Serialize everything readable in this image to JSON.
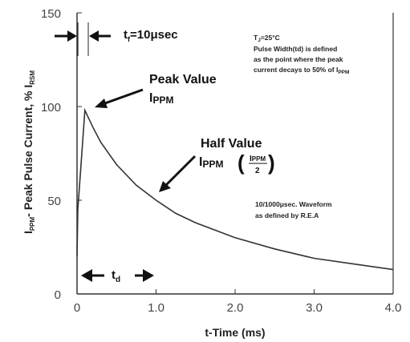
{
  "chart_data": {
    "type": "line",
    "xlabel": "t-Time (ms)",
    "ylabel": "Iₚₚₘ - Peak Pulse Current, % Iₓₛₘ",
    "ylabel_main": "Peak Pulse Current, % I",
    "ylabel_pre": "I",
    "ylabel_pre_sub": "PPM",
    "ylabel_dash": "-",
    "ylabel_post_sub": "RSM",
    "xlim": [
      0,
      4.0
    ],
    "ylim": [
      0,
      150
    ],
    "x_ticks": [
      0,
      1.0,
      2.0,
      3.0,
      4.0
    ],
    "x_tick_labels": [
      "0",
      "1.0",
      "2.0",
      "3.0",
      "4.0"
    ],
    "y_ticks": [
      0,
      50,
      100,
      150
    ],
    "y_tick_labels": [
      "0",
      "50",
      "100",
      "150"
    ],
    "grid": false,
    "series": [
      {
        "x": [
          0,
          0.01,
          0.1,
          0.2,
          0.3,
          0.5,
          0.75,
          1.0,
          1.25,
          1.5,
          2.0,
          2.5,
          3.0,
          3.5,
          4.0
        ],
        "y": [
          20,
          45,
          98,
          89,
          81,
          69,
          58,
          50,
          43,
          38,
          30,
          24,
          19,
          16,
          13
        ]
      }
    ],
    "annotations": {
      "tf_label_t": "t",
      "tf_label_sub": "f",
      "tf_label_rest": "=10μsec",
      "peak_line1": "Peak Value",
      "peak_line2_main": "I",
      "peak_line2_sub": "PPM",
      "half_line1": "Half Value",
      "half_line2_main": "I",
      "half_line2_sub": "PPM",
      "half_frac_num": "I",
      "half_frac_num_sub": "PPM",
      "half_frac_den": "2",
      "tj_main": "T",
      "tj_sub": "J",
      "tj_rest": "=25°C",
      "note_line1": "Pulse Width(td) is defined",
      "note_line2": "as the point where the peak",
      "note_line3": "current decays to 50% of I",
      "note_line3_sub": "PPM",
      "waveform_line1": "10/1000μsec. Waveform",
      "waveform_line2": "as defined by R.E.A",
      "td_main": "t",
      "td_sub": "d"
    }
  }
}
